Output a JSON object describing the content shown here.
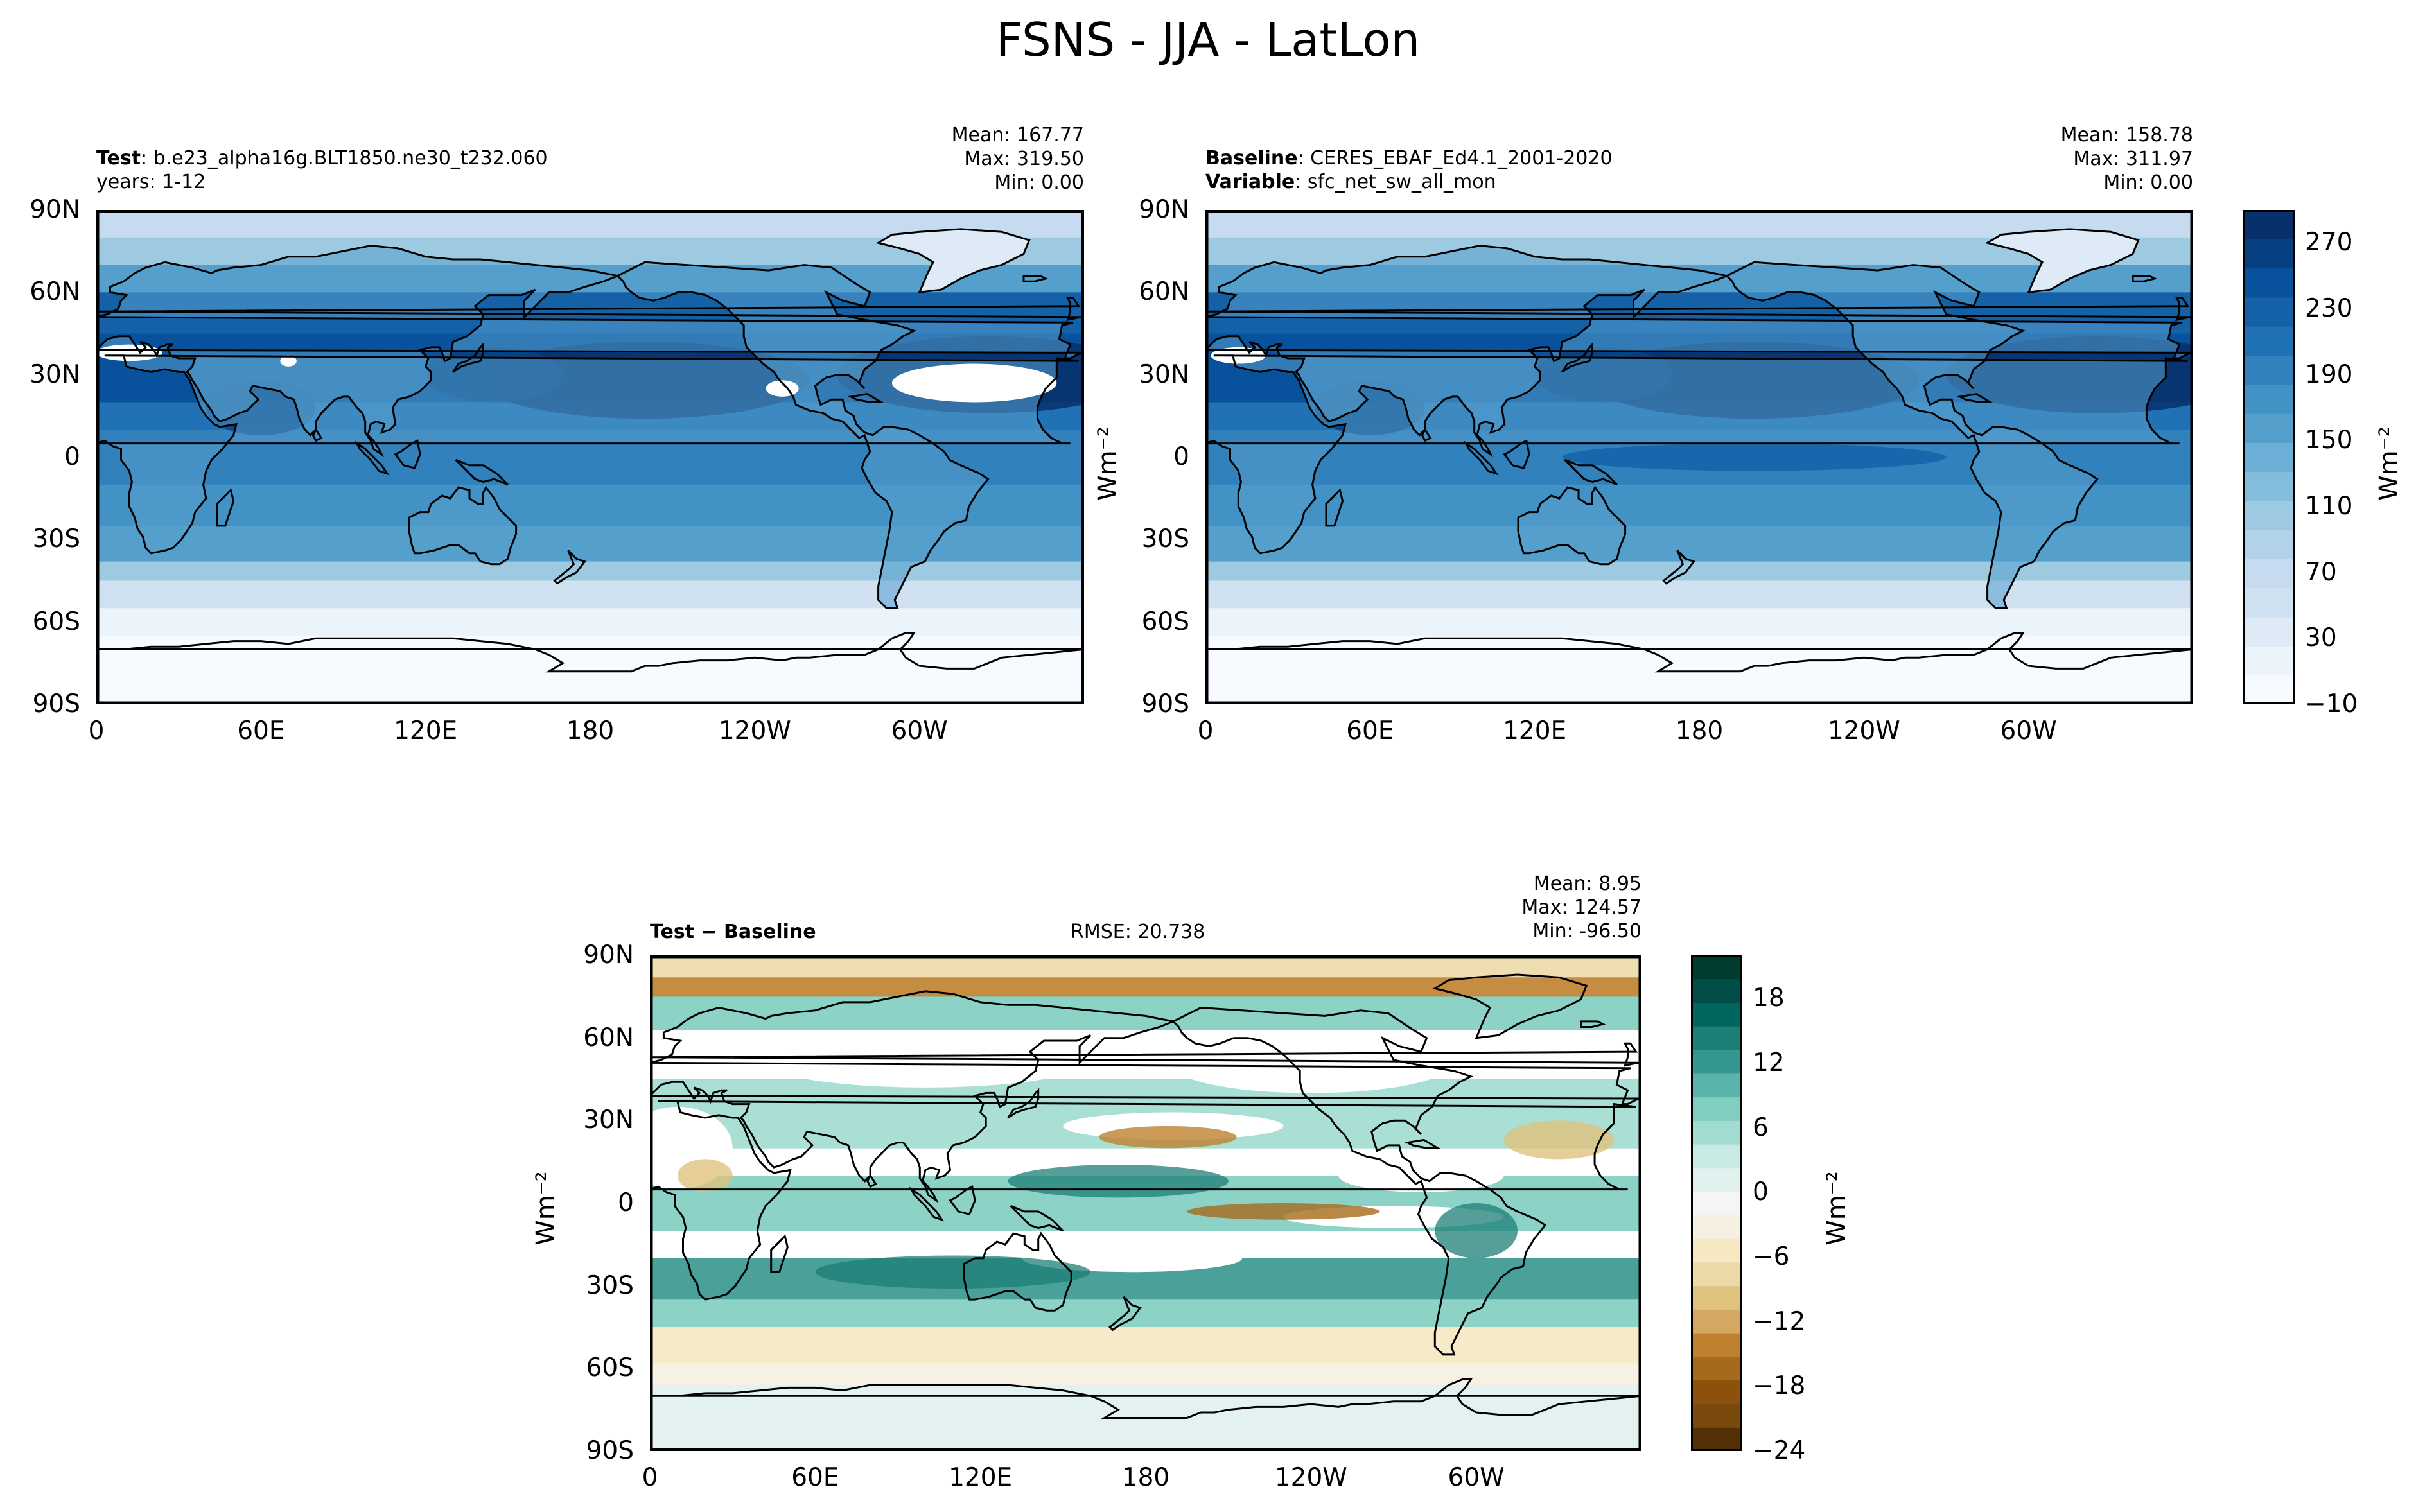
{
  "figure": {
    "title": "FSNS - JJA - LatLon"
  },
  "panels": {
    "test": {
      "label_bold": "Test",
      "label_sep": ": ",
      "label_text": "b.e23_alpha16g.BLT1850.ne30_t232.060",
      "line2": "years: 1-12",
      "stats": [
        "Mean: 167.77",
        "Max: 319.50",
        "Min:  0.00"
      ]
    },
    "baseline": {
      "label_bold": "Baseline",
      "label_sep": ": ",
      "label_text": "CERES_EBAF_Ed4.1_2001-2020",
      "line2_bold": "Variable",
      "line2_sep": ": ",
      "line2_text": "sfc_net_sw_all_mon",
      "stats": [
        "Mean: 158.78",
        "Max: 311.97",
        "Min:  0.00"
      ]
    },
    "diff": {
      "label_bold": "Test − Baseline",
      "rmse": "RMSE: 20.738",
      "stats": [
        "Mean:  8.95",
        "Max: 124.57",
        "Min: -96.50"
      ]
    }
  },
  "axes": {
    "lat_ticks": [
      "90N",
      "60N",
      "30N",
      "0",
      "30S",
      "60S",
      "90S"
    ],
    "lon_ticks": [
      "0",
      "60E",
      "120E",
      "180",
      "120W",
      "60W"
    ],
    "unit": "Wm⁻²"
  },
  "chart_data": [
    {
      "type": "heatmap",
      "name": "Test",
      "x_range": [
        0,
        360
      ],
      "y_range": [
        -90,
        90
      ],
      "colormap": "Blues",
      "summary": {
        "mean": 167.77,
        "max": 319.5,
        "min": 0.0
      }
    },
    {
      "type": "heatmap",
      "name": "Baseline",
      "x_range": [
        0,
        360
      ],
      "y_range": [
        -90,
        90
      ],
      "colormap": "Blues",
      "summary": {
        "mean": 158.78,
        "max": 311.97,
        "min": 0.0
      }
    },
    {
      "type": "heatmap",
      "name": "Test − Baseline",
      "x_range": [
        0,
        360
      ],
      "y_range": [
        -90,
        90
      ],
      "colormap": "BrBG",
      "summary": {
        "mean": 8.95,
        "max": 124.57,
        "min": -96.5,
        "rmse": 20.738
      }
    }
  ],
  "colorbars": {
    "top": {
      "ticks": [
        "270",
        "230",
        "190",
        "150",
        "110",
        "70",
        "30",
        "−10"
      ],
      "tick_values": [
        270,
        230,
        190,
        150,
        110,
        70,
        30,
        -10
      ],
      "range": [
        -10,
        290
      ],
      "colors": [
        "#f7fbff",
        "#ebf3fb",
        "#deebf7",
        "#d0e2f2",
        "#c6dbef",
        "#b2d2e8",
        "#9ecae1",
        "#84bcdb",
        "#6baed6",
        "#559fcd",
        "#4292c6",
        "#3181bd",
        "#2171b5",
        "#1461a8",
        "#08519c",
        "#083f80",
        "#08306b"
      ]
    },
    "diff": {
      "ticks": [
        "18",
        "12",
        "6",
        "0",
        "−6",
        "−12",
        "−18",
        "−24"
      ],
      "tick_values": [
        18,
        12,
        6,
        0,
        -6,
        -12,
        -18,
        -24
      ],
      "range": [
        -24,
        22
      ],
      "colors": [
        "#543005",
        "#7a4a0c",
        "#8c510a",
        "#a66a1c",
        "#bf812d",
        "#d4a861",
        "#dfc27d",
        "#ebd9a8",
        "#f6e8c3",
        "#f5f0e1",
        "#f5f5f5",
        "#e0f1ee",
        "#c7eae5",
        "#a1dbd1",
        "#80cdc1",
        "#5ab4ac",
        "#35978f",
        "#1c7f76",
        "#01665e",
        "#004e45",
        "#003c30"
      ]
    }
  },
  "colors": {
    "land": "#f7fbff",
    "coast": "#000000"
  }
}
